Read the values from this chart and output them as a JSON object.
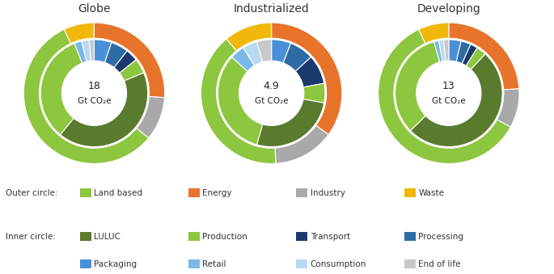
{
  "charts": [
    {
      "title": "Globe",
      "center_value": "18",
      "center_unit": "Gt CO₂e",
      "outer": {
        "values": [
          57,
          26,
          10,
          7
        ],
        "colors": [
          "#8dc63f",
          "#e8732a",
          "#a9a9a9",
          "#f0b80a"
        ]
      },
      "inner": {
        "values": [
          31,
          22,
          2.5,
          2.5,
          3.5,
          2,
          1.5,
          1,
          2,
          1
        ],
        "colors": [
          "#5a7a2e",
          "#8dc63f",
          "#4a90d9",
          "#7ab8e8",
          "#2e6da4",
          "#8dc63f",
          "#1a3a6b",
          "#7ab8e8",
          "#b8d9f0",
          "#c8c8c8"
        ]
      }
    },
    {
      "title": "Industrialized",
      "center_value": "4.9",
      "center_unit": "Gt CO₂e",
      "outer": {
        "values": [
          40,
          35,
          14,
          11
        ],
        "colors": [
          "#8dc63f",
          "#e8732a",
          "#a9a9a9",
          "#f0b80a"
        ]
      },
      "inner": {
        "values": [
          18,
          22,
          4,
          3,
          6,
          3,
          3,
          3,
          3,
          3
        ],
        "colors": [
          "#5a7a2e",
          "#8dc63f",
          "#4a90d9",
          "#7ab8e8",
          "#2e6da4",
          "#8dc63f",
          "#1a3a6b",
          "#7ab8e8",
          "#b8d9f0",
          "#c8c8c8"
        ]
      }
    },
    {
      "title": "Developing",
      "center_value": "13",
      "center_unit": "Gt CO₂e",
      "outer": {
        "values": [
          60,
          24,
          9,
          7
        ],
        "colors": [
          "#8dc63f",
          "#e8732a",
          "#a9a9a9",
          "#f0b80a"
        ]
      },
      "inner": {
        "values": [
          35,
          22,
          2,
          2,
          2.5,
          1.5,
          1,
          1,
          1,
          1
        ],
        "colors": [
          "#5a7a2e",
          "#8dc63f",
          "#4a90d9",
          "#7ab8e8",
          "#2e6da4",
          "#8dc63f",
          "#1a3a6b",
          "#7ab8e8",
          "#b8d9f0",
          "#c8c8c8"
        ]
      }
    }
  ],
  "outer_legend": [
    {
      "label": "Land based",
      "color": "#8dc63f"
    },
    {
      "label": "Energy",
      "color": "#e8732a"
    },
    {
      "label": "Industry",
      "color": "#a9a9a9"
    },
    {
      "label": "Waste",
      "color": "#f0b80a"
    }
  ],
  "inner_legend_row1": [
    {
      "label": "LULUC",
      "color": "#5a7a2e"
    },
    {
      "label": "Production",
      "color": "#8dc63f"
    },
    {
      "label": "Transport",
      "color": "#1a3a6b"
    },
    {
      "label": "Processing",
      "color": "#2e6da4"
    }
  ],
  "inner_legend_row2": [
    {
      "label": "Packaging",
      "color": "#4a90d9"
    },
    {
      "label": "Retail",
      "color": "#7ab8e8"
    },
    {
      "label": "Consumption",
      "color": "#b8d9f0"
    },
    {
      "label": "End of life",
      "color": "#c8c8c8"
    }
  ],
  "background_color": "#ffffff"
}
